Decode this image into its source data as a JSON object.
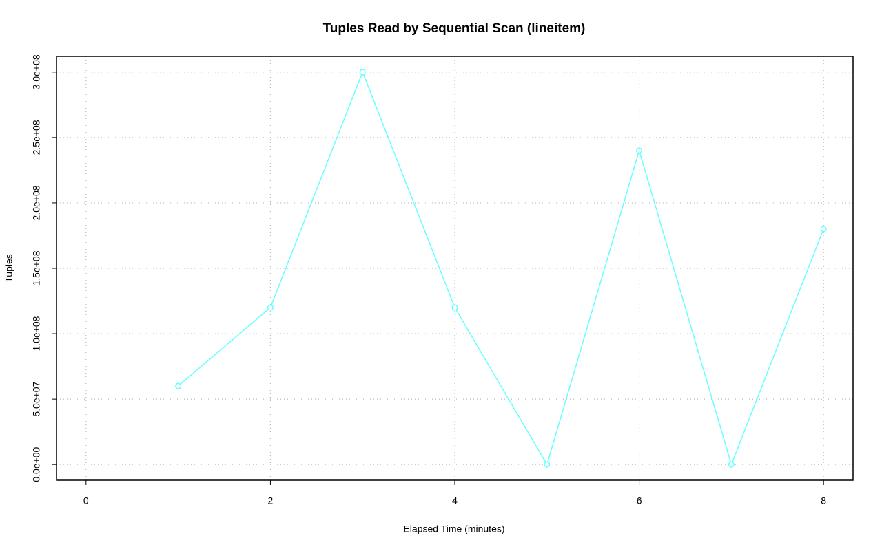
{
  "chart_data": {
    "type": "line",
    "title": "Tuples Read by Sequential Scan (lineitem)",
    "x_label": "Elapsed Time (minutes)",
    "y_label": "Tuples",
    "x": [
      1,
      2,
      3,
      4,
      5,
      6,
      7,
      8
    ],
    "series": [
      {
        "name": "lineitem",
        "color": "#66ffff",
        "values": [
          60000000,
          120000000,
          300000000,
          120000000,
          0,
          240000000,
          0,
          180000000
        ]
      }
    ],
    "xlim": [
      -0.32,
      8.32
    ],
    "ylim": [
      -12000000,
      312000000
    ],
    "xticks": [
      0,
      2,
      4,
      6,
      8
    ],
    "yticks": [
      {
        "value": 0,
        "label": "0.0e+00"
      },
      {
        "value": 50000000,
        "label": "5.0e+07"
      },
      {
        "value": 100000000,
        "label": "1.0e+08"
      },
      {
        "value": 150000000,
        "label": "1.5e+08"
      },
      {
        "value": 200000000,
        "label": "2.0e+08"
      },
      {
        "value": 250000000,
        "label": "2.5e+08"
      },
      {
        "value": 300000000,
        "label": "3.0e+08"
      }
    ],
    "grid": true
  }
}
